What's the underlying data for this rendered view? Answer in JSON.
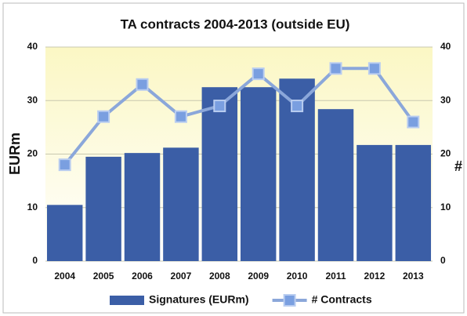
{
  "chart_data": {
    "type": "bar",
    "title": "TA contracts 2004-2013 (outside EU)",
    "categories": [
      "2004",
      "2005",
      "2006",
      "2007",
      "2008",
      "2009",
      "2010",
      "2011",
      "2012",
      "2013"
    ],
    "series": [
      {
        "name": "Signatures (EURm)",
        "type": "bar",
        "color": "#3b5ea6",
        "values": [
          10.5,
          19.5,
          20.2,
          21.2,
          32.5,
          32.5,
          34.1,
          28.4,
          21.7,
          21.7
        ]
      },
      {
        "name": "# Contracts",
        "type": "line",
        "axis": "y2",
        "color": "#8ba7da",
        "values": [
          18,
          27,
          33,
          27,
          29,
          35,
          29,
          36,
          36,
          26
        ]
      }
    ],
    "ylabel": "EURm",
    "y2label": "#",
    "ylim": [
      0,
      40
    ],
    "yticks": [
      0,
      10,
      20,
      30,
      40
    ],
    "y2lim": [
      0,
      40
    ],
    "y2ticks": [
      0,
      10,
      20,
      30,
      40
    ],
    "grid": true,
    "legend": "bottom"
  }
}
